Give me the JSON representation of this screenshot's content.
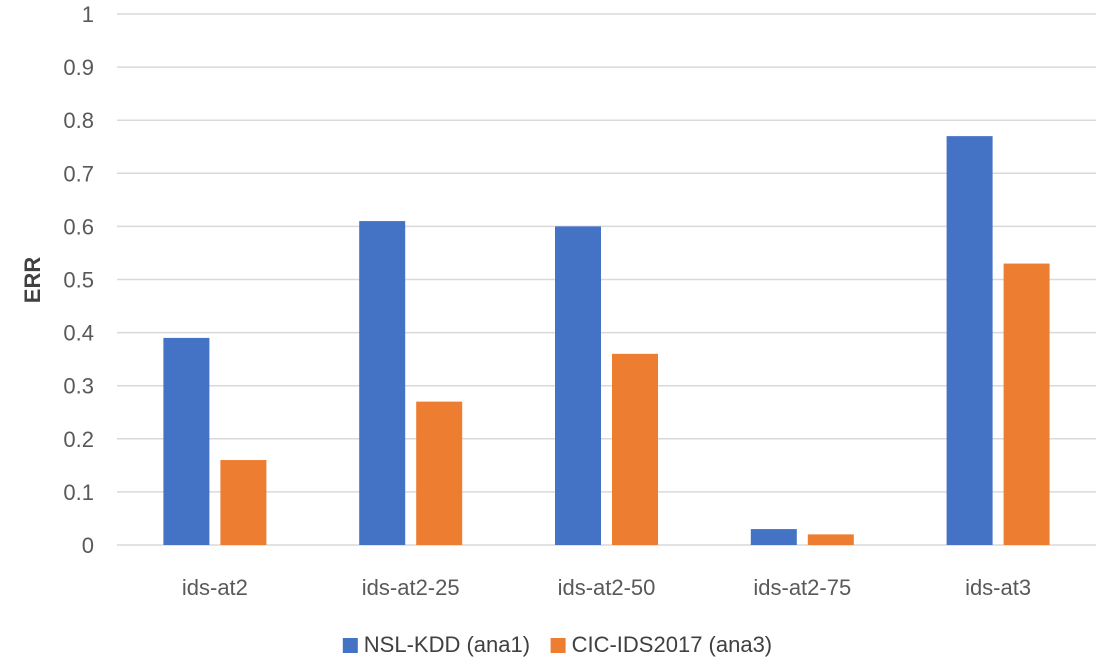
{
  "chart_data": {
    "type": "bar",
    "title": "",
    "xlabel": "",
    "ylabel": "ERR",
    "ylim": [
      0,
      1
    ],
    "yticks": [
      0,
      0.1,
      0.2,
      0.3,
      0.4,
      0.5,
      0.6,
      0.7,
      0.8,
      0.9,
      1
    ],
    "grid": true,
    "legend_position": "bottom",
    "categories": [
      "ids-at2",
      "ids-at2-25",
      "ids-at2-50",
      "ids-at2-75",
      "ids-at3"
    ],
    "series": [
      {
        "name": "NSL-KDD (ana1)",
        "color": "#4472c4",
        "values": [
          0.39,
          0.61,
          0.6,
          0.03,
          0.77
        ]
      },
      {
        "name": "CIC-IDS2017 (ana3)",
        "color": "#ed7d31",
        "values": [
          0.16,
          0.27,
          0.36,
          0.02,
          0.53
        ]
      }
    ]
  }
}
